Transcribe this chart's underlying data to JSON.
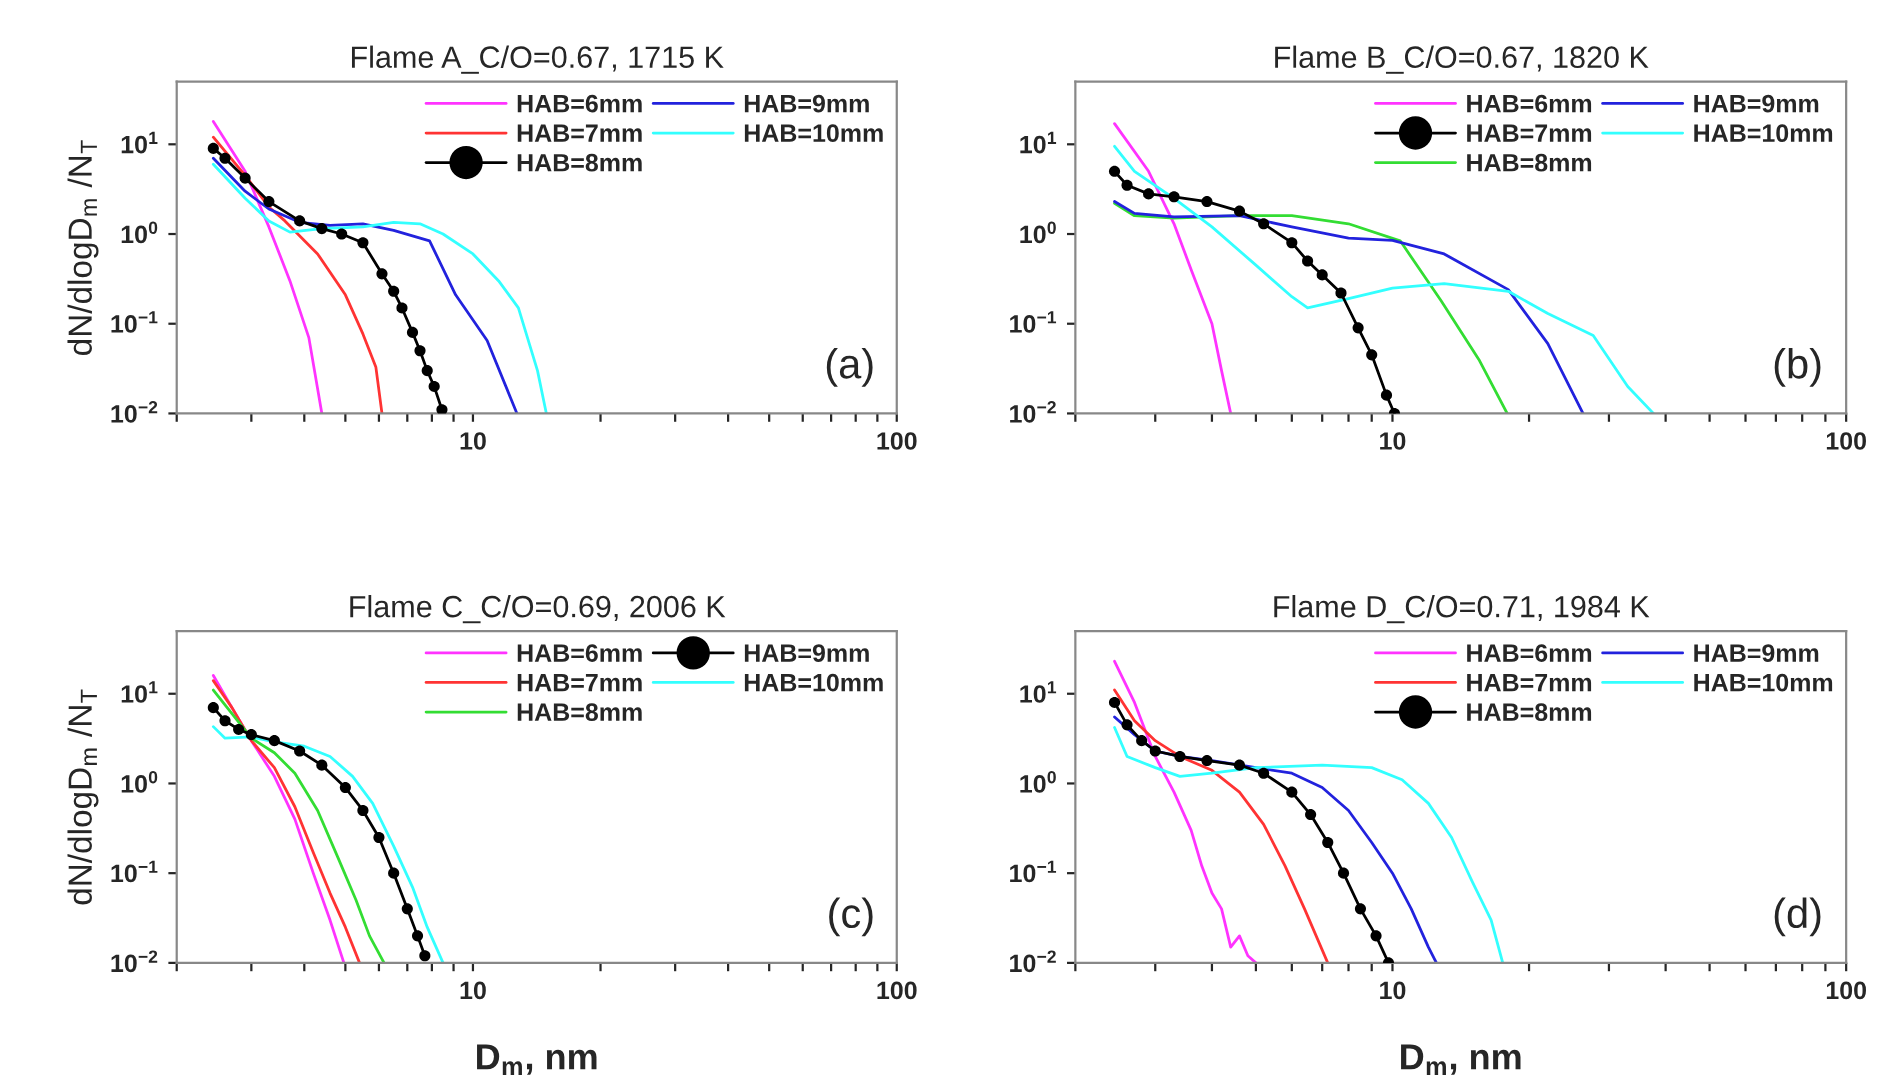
{
  "chart_data": [
    {
      "type": "line",
      "title": "Flame A_C/O=0.67, 1715 K",
      "ylabel": "dN/dlogD$_{m}$ /N$_{T}$",
      "annotations": [
        "(a)"
      ],
      "log": "xy",
      "legend": "top right",
      "xlim": [
        2,
        100
      ],
      "ylim": [
        0.01,
        50
      ],
      "xticks": [
        {
          "value": 2,
          "label": null
        },
        {
          "value": 3,
          "label": null
        },
        {
          "value": 4,
          "label": null
        },
        {
          "value": 5,
          "label": null
        },
        {
          "value": 6,
          "label": null
        },
        {
          "value": 7,
          "label": null
        },
        {
          "value": 8,
          "label": null
        },
        {
          "value": 9,
          "label": null
        },
        10,
        {
          "value": 20,
          "label": null
        },
        {
          "value": 30,
          "label": null
        },
        {
          "value": 40,
          "label": null
        },
        {
          "value": 50,
          "label": null
        },
        {
          "value": 60,
          "label": null
        },
        {
          "value": 70,
          "label": null
        },
        {
          "value": 80,
          "label": null
        },
        {
          "value": 90,
          "label": null
        },
        100
      ],
      "yticks": [
        {
          "value": 0.01,
          "label": "10$^{−2}$"
        },
        {
          "value": 0.1,
          "label": "10$^{−1}$"
        },
        {
          "value": 1,
          "label": "10$^{0}$"
        },
        {
          "value": 10,
          "label": "10$^{1}$"
        }
      ],
      "series": [
        {
          "name": "HAB=6mm",
          "color": "#ff33ff",
          "x": [
            2.44,
            2.9,
            3.3,
            3.7,
            4.1,
            4.4
          ],
          "values": [
            18,
            5,
            1.2,
            0.3,
            0.07,
            0.01
          ]
        },
        {
          "name": "HAB=7mm",
          "color": "#ff3333",
          "x": [
            2.44,
            2.9,
            3.3,
            3.6,
            4.3,
            5.0,
            5.5,
            5.9,
            6.1
          ],
          "values": [
            12,
            4.5,
            2,
            1.4,
            0.6,
            0.21,
            0.077,
            0.033,
            0.01
          ]
        },
        {
          "name": "HAB=8mm",
          "color": "#000000",
          "marker": "circle",
          "x": [
            2.44,
            2.6,
            2.9,
            3.3,
            3.9,
            4.4,
            4.9,
            5.5,
            6.1,
            6.5,
            6.8,
            7.2,
            7.5,
            7.8,
            8.1,
            8.45
          ],
          "values": [
            9,
            7,
            4.2,
            2.3,
            1.4,
            1.15,
            1.0,
            0.8,
            0.36,
            0.23,
            0.15,
            0.08,
            0.05,
            0.03,
            0.02,
            0.011
          ]
        },
        {
          "name": "HAB=9mm",
          "color": "#2222dd",
          "x": [
            2.44,
            2.9,
            3.3,
            3.9,
            4.6,
            5.5,
            6.5,
            7.9,
            9.1,
            10.8,
            12.7
          ],
          "values": [
            7,
            3,
            1.9,
            1.35,
            1.25,
            1.3,
            1.1,
            0.84,
            0.21,
            0.065,
            0.01
          ]
        },
        {
          "name": "HAB=10mm",
          "color": "#33ffff",
          "x": [
            2.44,
            2.9,
            3.3,
            3.7,
            4.4,
            5.5,
            6.5,
            7.5,
            8.5,
            10,
            11.5,
            12.8,
            14.2,
            14.9
          ],
          "values": [
            6,
            2.5,
            1.4,
            1.05,
            1.15,
            1.2,
            1.35,
            1.3,
            1.0,
            0.6,
            0.3,
            0.15,
            0.03,
            0.01
          ]
        }
      ]
    },
    {
      "type": "line",
      "title": "Flame B_C/O=0.67, 1820 K",
      "annotations": [
        "(b)"
      ],
      "log": "xy",
      "legend": "top right",
      "xlim": [
        2,
        100
      ],
      "ylim": [
        0.01,
        50
      ],
      "xticks": [
        {
          "value": 2,
          "label": null
        },
        {
          "value": 3,
          "label": null
        },
        {
          "value": 4,
          "label": null
        },
        {
          "value": 5,
          "label": null
        },
        {
          "value": 6,
          "label": null
        },
        {
          "value": 7,
          "label": null
        },
        {
          "value": 8,
          "label": null
        },
        {
          "value": 9,
          "label": null
        },
        10,
        {
          "value": 20,
          "label": null
        },
        {
          "value": 30,
          "label": null
        },
        {
          "value": 40,
          "label": null
        },
        {
          "value": 50,
          "label": null
        },
        {
          "value": 60,
          "label": null
        },
        {
          "value": 70,
          "label": null
        },
        {
          "value": 80,
          "label": null
        },
        {
          "value": 90,
          "label": null
        },
        100
      ],
      "yticks": [
        {
          "value": 0.01,
          "label": "10$^{−2}$"
        },
        {
          "value": 0.1,
          "label": "10$^{−1}$"
        },
        {
          "value": 1,
          "label": "10$^{0}$"
        },
        {
          "value": 10,
          "label": "10$^{1}$"
        }
      ],
      "series": [
        {
          "name": "HAB=6mm",
          "color": "#ff33ff",
          "x": [
            2.44,
            2.9,
            3.3,
            3.6,
            4.0,
            4.2,
            4.4
          ],
          "values": [
            17,
            5,
            1.3,
            0.4,
            0.1,
            0.03,
            0.01
          ]
        },
        {
          "name": "HAB=7mm",
          "color": "#000000",
          "marker": "circle",
          "x": [
            2.44,
            2.6,
            2.9,
            3.3,
            3.9,
            4.6,
            5.2,
            6.0,
            6.5,
            7.0,
            7.7,
            8.4,
            9.0,
            9.7,
            10.1
          ],
          "values": [
            5,
            3.5,
            2.8,
            2.6,
            2.3,
            1.8,
            1.3,
            0.8,
            0.5,
            0.35,
            0.22,
            0.09,
            0.045,
            0.016,
            0.01
          ]
        },
        {
          "name": "HAB=8mm",
          "color": "#33dd33",
          "x": [
            2.44,
            2.7,
            3.3,
            4.6,
            6,
            8,
            10.4,
            12.8,
            15.5,
            17.9
          ],
          "values": [
            2.2,
            1.6,
            1.5,
            1.6,
            1.6,
            1.3,
            0.84,
            0.18,
            0.04,
            0.01
          ]
        },
        {
          "name": "HAB=9mm",
          "color": "#2222dd",
          "x": [
            2.44,
            2.7,
            3.3,
            4.6,
            6,
            8,
            10,
            13,
            18,
            22,
            24,
            26.3
          ],
          "values": [
            2.3,
            1.7,
            1.55,
            1.6,
            1.2,
            0.9,
            0.85,
            0.6,
            0.24,
            0.06,
            0.025,
            0.01
          ]
        },
        {
          "name": "HAB=10mm",
          "color": "#33ffff",
          "x": [
            2.44,
            2.7,
            3.3,
            4.0,
            5.0,
            6.0,
            6.5,
            8,
            10,
            13,
            18,
            22,
            27.7,
            33,
            37.6
          ],
          "values": [
            9.5,
            5,
            2.5,
            1.2,
            0.45,
            0.2,
            0.15,
            0.19,
            0.25,
            0.28,
            0.23,
            0.13,
            0.074,
            0.02,
            0.01
          ]
        }
      ]
    },
    {
      "type": "line",
      "title": "Flame C_C/O=0.69, 2006 K",
      "ylabel": "dN/dlogD$_{m}$ /N$_{T}$",
      "xlabel": "D$_{m}$, nm",
      "annotations": [
        "(c)"
      ],
      "log": "xy",
      "legend": "top right",
      "xlim": [
        2,
        100
      ],
      "ylim": [
        0.01,
        50
      ],
      "xticks": [
        {
          "value": 2,
          "label": null
        },
        {
          "value": 3,
          "label": null
        },
        {
          "value": 4,
          "label": null
        },
        {
          "value": 5,
          "label": null
        },
        {
          "value": 6,
          "label": null
        },
        {
          "value": 7,
          "label": null
        },
        {
          "value": 8,
          "label": null
        },
        {
          "value": 9,
          "label": null
        },
        10,
        {
          "value": 20,
          "label": null
        },
        {
          "value": 30,
          "label": null
        },
        {
          "value": 40,
          "label": null
        },
        {
          "value": 50,
          "label": null
        },
        {
          "value": 60,
          "label": null
        },
        {
          "value": 70,
          "label": null
        },
        {
          "value": 80,
          "label": null
        },
        {
          "value": 90,
          "label": null
        },
        100
      ],
      "yticks": [
        {
          "value": 0.01,
          "label": "10$^{−2}$"
        },
        {
          "value": 0.1,
          "label": "10$^{−1}$"
        },
        {
          "value": 1,
          "label": "10$^{0}$"
        },
        {
          "value": 10,
          "label": "10$^{1}$"
        }
      ],
      "series": [
        {
          "name": "HAB=6mm",
          "color": "#ff33ff",
          "x": [
            2.44,
            2.7,
            3.0,
            3.4,
            3.8,
            4.2,
            4.6,
            4.96
          ],
          "values": [
            16,
            7,
            3,
            1.2,
            0.4,
            0.1,
            0.03,
            0.01
          ]
        },
        {
          "name": "HAB=7mm",
          "color": "#ff3333",
          "x": [
            2.44,
            2.7,
            3.0,
            3.4,
            3.8,
            4.2,
            4.6,
            5.0,
            5.4
          ],
          "values": [
            14,
            7,
            3,
            1.5,
            0.55,
            0.17,
            0.06,
            0.025,
            0.01
          ]
        },
        {
          "name": "HAB=8mm",
          "color": "#33dd33",
          "x": [
            2.44,
            2.7,
            3.0,
            3.4,
            3.8,
            4.3,
            4.8,
            5.3,
            5.7,
            6.17
          ],
          "values": [
            11,
            6,
            3.2,
            2.2,
            1.3,
            0.5,
            0.15,
            0.05,
            0.02,
            0.01
          ]
        },
        {
          "name": "HAB=9mm",
          "color": "#000000",
          "marker": "circle",
          "x": [
            2.44,
            2.6,
            2.8,
            3.0,
            3.4,
            3.9,
            4.4,
            5.0,
            5.5,
            6.0,
            6.5,
            7.0,
            7.4,
            7.7
          ],
          "values": [
            7,
            5,
            4,
            3.5,
            3,
            2.3,
            1.6,
            0.9,
            0.5,
            0.25,
            0.1,
            0.04,
            0.02,
            0.012
          ]
        },
        {
          "name": "HAB=10mm",
          "color": "#33ffff",
          "x": [
            2.44,
            2.6,
            3.0,
            3.4,
            4.0,
            4.6,
            5.2,
            5.8,
            6.5,
            7.2,
            7.8,
            8.5
          ],
          "values": [
            4.3,
            3.2,
            3.3,
            2.9,
            2.6,
            2,
            1.2,
            0.6,
            0.2,
            0.07,
            0.025,
            0.01
          ]
        }
      ]
    },
    {
      "type": "line",
      "title": "Flame D_C/O=0.71, 1984 K",
      "xlabel": "D$_{m}$, nm",
      "annotations": [
        "(d)"
      ],
      "log": "xy",
      "legend": "top right",
      "xlim": [
        2,
        100
      ],
      "ylim": [
        0.01,
        50
      ],
      "xticks": [
        {
          "value": 2,
          "label": null
        },
        {
          "value": 3,
          "label": null
        },
        {
          "value": 4,
          "label": null
        },
        {
          "value": 5,
          "label": null
        },
        {
          "value": 6,
          "label": null
        },
        {
          "value": 7,
          "label": null
        },
        {
          "value": 8,
          "label": null
        },
        {
          "value": 9,
          "label": null
        },
        10,
        {
          "value": 20,
          "label": null
        },
        {
          "value": 30,
          "label": null
        },
        {
          "value": 40,
          "label": null
        },
        {
          "value": 50,
          "label": null
        },
        {
          "value": 60,
          "label": null
        },
        {
          "value": 70,
          "label": null
        },
        {
          "value": 80,
          "label": null
        },
        {
          "value": 90,
          "label": null
        },
        100
      ],
      "yticks": [
        {
          "value": 0.01,
          "label": "10$^{−2}$"
        },
        {
          "value": 0.1,
          "label": "10$^{−1}$"
        },
        {
          "value": 1,
          "label": "10$^{0}$"
        },
        {
          "value": 10,
          "label": "10$^{1}$"
        }
      ],
      "series": [
        {
          "name": "HAB=6mm",
          "color": "#ff33ff",
          "x": [
            2.44,
            2.7,
            3.0,
            3.3,
            3.6,
            3.8,
            4.0,
            4.2,
            4.4,
            4.6,
            4.8,
            5.0
          ],
          "values": [
            23,
            8,
            2,
            0.8,
            0.3,
            0.12,
            0.06,
            0.04,
            0.015,
            0.02,
            0.012,
            0.01
          ]
        },
        {
          "name": "HAB=7mm",
          "color": "#ff3333",
          "x": [
            2.44,
            2.7,
            3.0,
            3.4,
            4.0,
            4.6,
            5.2,
            5.8,
            6.4,
            7.2
          ],
          "values": [
            11,
            5,
            3,
            2,
            1.4,
            0.8,
            0.35,
            0.12,
            0.04,
            0.01
          ]
        },
        {
          "name": "HAB=8mm",
          "color": "#000000",
          "marker": "circle",
          "x": [
            2.44,
            2.6,
            2.8,
            3.0,
            3.4,
            3.9,
            4.6,
            5.2,
            6.0,
            6.6,
            7.2,
            7.8,
            8.5,
            9.2,
            9.8
          ],
          "values": [
            8,
            4.5,
            3,
            2.3,
            2,
            1.8,
            1.6,
            1.3,
            0.8,
            0.45,
            0.22,
            0.1,
            0.04,
            0.02,
            0.01
          ]
        },
        {
          "name": "HAB=9mm",
          "color": "#2222dd",
          "x": [
            2.44,
            2.7,
            3.0,
            3.4,
            4.0,
            5.0,
            6.0,
            7.0,
            8.0,
            9.0,
            10,
            11,
            12,
            12.5
          ],
          "values": [
            5.5,
            3.5,
            2.3,
            2,
            1.8,
            1.5,
            1.3,
            0.9,
            0.5,
            0.22,
            0.1,
            0.04,
            0.015,
            0.01
          ]
        },
        {
          "name": "HAB=10mm",
          "color": "#33ffff",
          "x": [
            2.44,
            2.6,
            3.0,
            3.4,
            4.0,
            5.0,
            7,
            9,
            10.5,
            12,
            13.5,
            15,
            16.5,
            17.5
          ],
          "values": [
            4.2,
            2,
            1.5,
            1.2,
            1.3,
            1.5,
            1.6,
            1.5,
            1.1,
            0.6,
            0.25,
            0.08,
            0.03,
            0.01
          ]
        }
      ]
    }
  ]
}
